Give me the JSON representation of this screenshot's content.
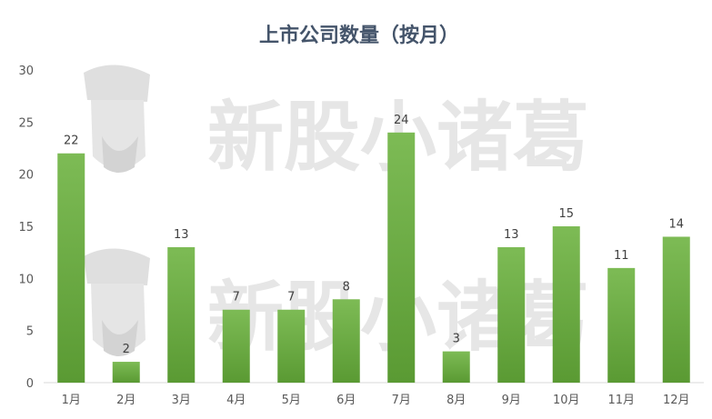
{
  "chart_data": {
    "type": "bar",
    "title": "上市公司数量（按月）",
    "categories": [
      "1月",
      "2月",
      "3月",
      "4月",
      "5月",
      "6月",
      "7月",
      "8月",
      "9月",
      "10月",
      "11月",
      "12月"
    ],
    "values": [
      22,
      2,
      13,
      7,
      7,
      8,
      24,
      3,
      13,
      15,
      11,
      14
    ],
    "ylim": [
      0,
      30
    ],
    "yticks": [
      0,
      5,
      10,
      15,
      20,
      25,
      30
    ],
    "xlabel": "",
    "ylabel": "",
    "grid": false,
    "legend": "none",
    "bar_color_top": "#7dbb55",
    "bar_color_bottom": "#5a9a33"
  },
  "watermark": {
    "text": "新股小诸葛",
    "icon": "mascot-portrait-icon"
  }
}
